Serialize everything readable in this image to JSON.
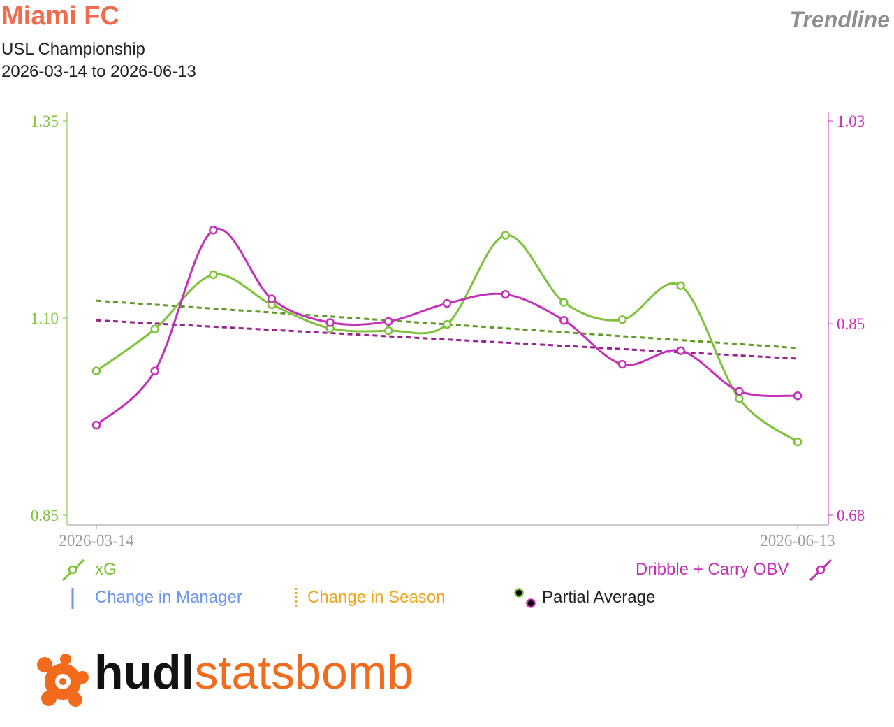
{
  "header": {
    "team": "Miami FC",
    "competition": "USL Championship",
    "date_range": "2026-03-14 to 2026-06-13",
    "view_name": "Trendline"
  },
  "colors": {
    "xg": "#7dc23a",
    "xg_trend": "#5e9a25",
    "obv": "#c630b8",
    "obv_trend": "#9a1f8f",
    "manager": "#6e96f0",
    "season": "#f0a61a",
    "team": "#f26b4f",
    "axis": "#999999"
  },
  "chart_data": {
    "type": "line",
    "x_start_label": "2026-03-14",
    "x_end_label": "2026-06-13",
    "left_axis": {
      "series": "xG",
      "ylim": [
        0.85,
        1.35
      ],
      "ticks": [
        "0.85",
        "1.10",
        "1.35"
      ]
    },
    "right_axis": {
      "series": "Dribble + Carry OBV",
      "ylim": [
        0.68,
        1.03
      ],
      "ticks": [
        "0.68",
        "0.85",
        "1.03"
      ]
    },
    "series": [
      {
        "name": "xG",
        "axis": "left",
        "values": [
          1.033,
          1.086,
          1.155,
          1.117,
          1.087,
          1.084,
          1.092,
          1.205,
          1.12,
          1.098,
          1.141,
          0.998,
          0.943
        ],
        "trend": [
          1.122,
          1.062
        ]
      },
      {
        "name": "Dribble + Carry OBV",
        "axis": "right",
        "values": [
          0.76,
          0.808,
          0.933,
          0.872,
          0.851,
          0.852,
          0.868,
          0.876,
          0.853,
          0.814,
          0.826,
          0.79,
          0.786
        ],
        "trend": [
          0.853,
          0.819
        ]
      }
    ],
    "grid": false
  },
  "legend": {
    "xg_label": "xG",
    "obv_label": "Dribble + Carry OBV",
    "manager_label": "Change in Manager",
    "season_label": "Change in Season",
    "partial_label": "Partial Average"
  },
  "logo": {
    "part1": "hudl",
    "part2": "statsbomb"
  }
}
